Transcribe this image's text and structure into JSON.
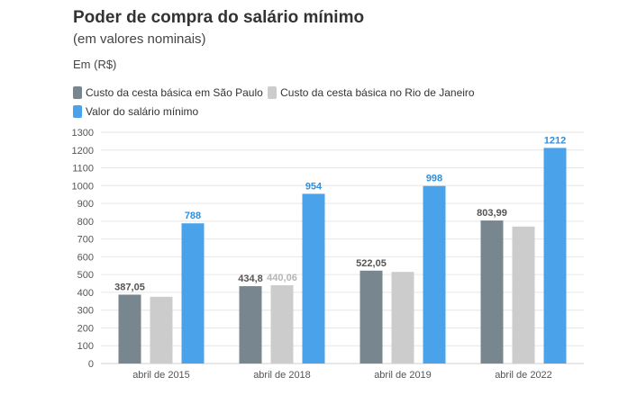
{
  "header": {
    "title": "Poder de compra do salário mínimo",
    "subtitle": "(em valores nominais)",
    "unit": "Em (R$)"
  },
  "colors": {
    "sp": "#78878f",
    "rj": "#cccccc",
    "salario": "#4aa3ea",
    "grid": "#e6e6e6"
  },
  "chart_data": {
    "type": "bar",
    "title": "Poder de compra do salário mínimo",
    "subtitle": "(em valores nominais)",
    "ylabel": "Em (R$)",
    "xlabel": "",
    "ylim": [
      0,
      1300
    ],
    "yticks": [
      0,
      100,
      200,
      300,
      400,
      500,
      600,
      700,
      800,
      900,
      1000,
      1100,
      1200,
      1300
    ],
    "grid": true,
    "legend_position": "top-left",
    "categories": [
      "abril de 2015",
      "abril de 2018",
      "abril de 2019",
      "abril de 2022"
    ],
    "series": [
      {
        "name": "Custo da cesta básica em São Paulo",
        "color_key": "sp",
        "values": [
          387.05,
          434.8,
          522.05,
          803.99
        ],
        "labels": [
          "387,05",
          "434,8",
          "522,05",
          "803,99"
        ],
        "label_color": "#555555"
      },
      {
        "name": "Custo da cesta básica no Rio de Janeiro",
        "color_key": "rj",
        "values": [
          375,
          440.06,
          515,
          770
        ],
        "labels": [
          null,
          "440,06",
          null,
          null
        ],
        "label_color": "#b5b5b5"
      },
      {
        "name": "Valor do salário mínimo",
        "color_key": "salario",
        "values": [
          788,
          954,
          998,
          1212
        ],
        "labels": [
          "788",
          "954",
          "998",
          "1212"
        ],
        "label_color": "#2f8fdc"
      }
    ]
  }
}
